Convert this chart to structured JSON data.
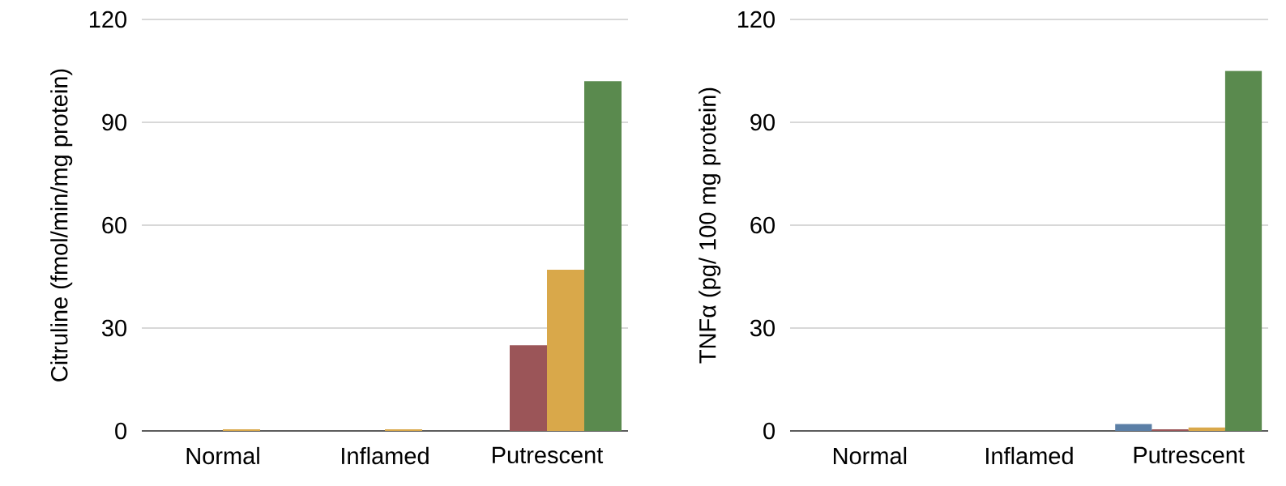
{
  "chart_data": [
    {
      "type": "bar",
      "ylabel": "Citruline (fmol/min/mg protein)",
      "categories": [
        "Normal",
        "Inflamed",
        "Putrescent"
      ],
      "ylim": [
        0,
        120
      ],
      "yticks": [
        0,
        30,
        60,
        90,
        120
      ],
      "grid": "y",
      "series": [
        {
          "color": "#5b7fa6",
          "values": [
            0,
            0,
            0
          ]
        },
        {
          "color": "#9b5558",
          "values": [
            0,
            0,
            25
          ]
        },
        {
          "color": "#d9a84a",
          "values": [
            0.5,
            0.5,
            47
          ]
        },
        {
          "color": "#5a8a4e",
          "values": [
            0,
            0,
            102
          ]
        }
      ]
    },
    {
      "type": "bar",
      "ylabel": "TNFα (pg/ 100 mg protein)",
      "categories": [
        "Normal",
        "Inflamed",
        "Putrescent"
      ],
      "ylim": [
        0,
        120
      ],
      "yticks": [
        0,
        30,
        60,
        90,
        120
      ],
      "grid": "y",
      "series": [
        {
          "color": "#5b7fa6",
          "values": [
            0,
            0,
            2
          ]
        },
        {
          "color": "#9b5558",
          "values": [
            0,
            0,
            0.5
          ]
        },
        {
          "color": "#d9a84a",
          "values": [
            0,
            0,
            1
          ]
        },
        {
          "color": "#5a8a4e",
          "values": [
            0,
            0,
            105
          ]
        }
      ]
    }
  ]
}
